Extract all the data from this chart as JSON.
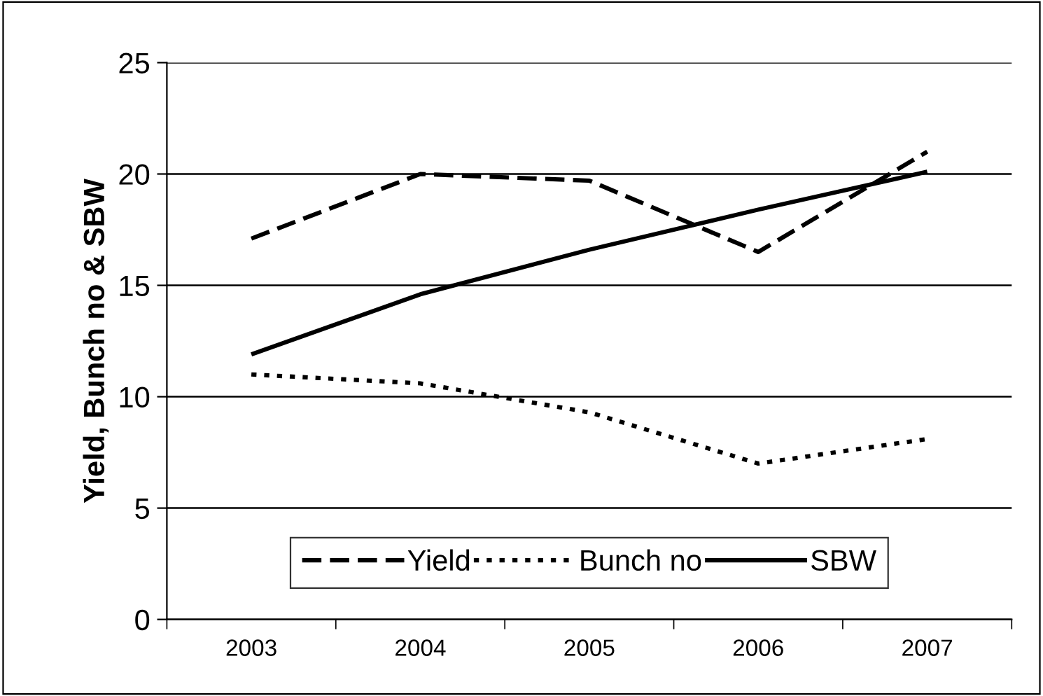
{
  "chart_data": {
    "type": "line",
    "ylabel": "Yield, Bunch no & SBW",
    "categories": [
      "2003",
      "2004",
      "2005",
      "2006",
      "2007"
    ],
    "series": [
      {
        "name": "Yield",
        "color": "#000000",
        "line_style": "dashed",
        "values": [
          17.1,
          20.0,
          19.7,
          16.5,
          21.0
        ]
      },
      {
        "name": "Bunch no",
        "color": "#000000",
        "line_style": "dotted",
        "values": [
          11.0,
          10.6,
          9.3,
          7.0,
          8.1
        ]
      },
      {
        "name": "SBW",
        "color": "#000000",
        "line_style": "solid",
        "values": [
          11.9,
          14.6,
          16.6,
          18.4,
          20.1
        ]
      }
    ],
    "ylim": [
      0,
      25
    ],
    "yticks": [
      0,
      5,
      10,
      15,
      20,
      25
    ],
    "grid": "y",
    "legend": "bottom",
    "marker": "none"
  }
}
